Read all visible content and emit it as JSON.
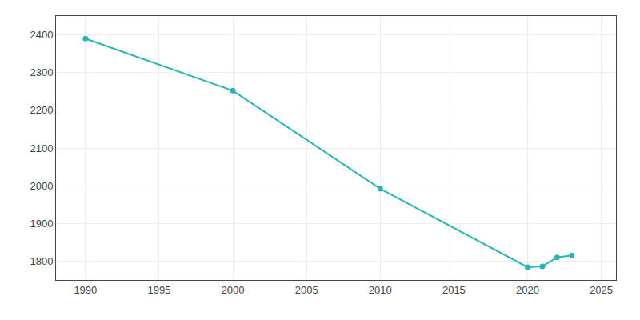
{
  "chart_data": {
    "type": "line",
    "x": [
      1990,
      2000,
      2010,
      2020,
      2021,
      2022,
      2023
    ],
    "values": [
      2390,
      2252,
      1992,
      1784,
      1786,
      1810,
      1815
    ],
    "color": "#2ab5b5",
    "marker": "circle",
    "xlim": [
      1988,
      2026
    ],
    "ylim": [
      1750,
      2450
    ],
    "xticks": [
      1990,
      1995,
      2000,
      2005,
      2010,
      2015,
      2020,
      2025
    ],
    "yticks": [
      1800,
      1900,
      2000,
      2100,
      2200,
      2300,
      2400
    ],
    "grid": true
  }
}
